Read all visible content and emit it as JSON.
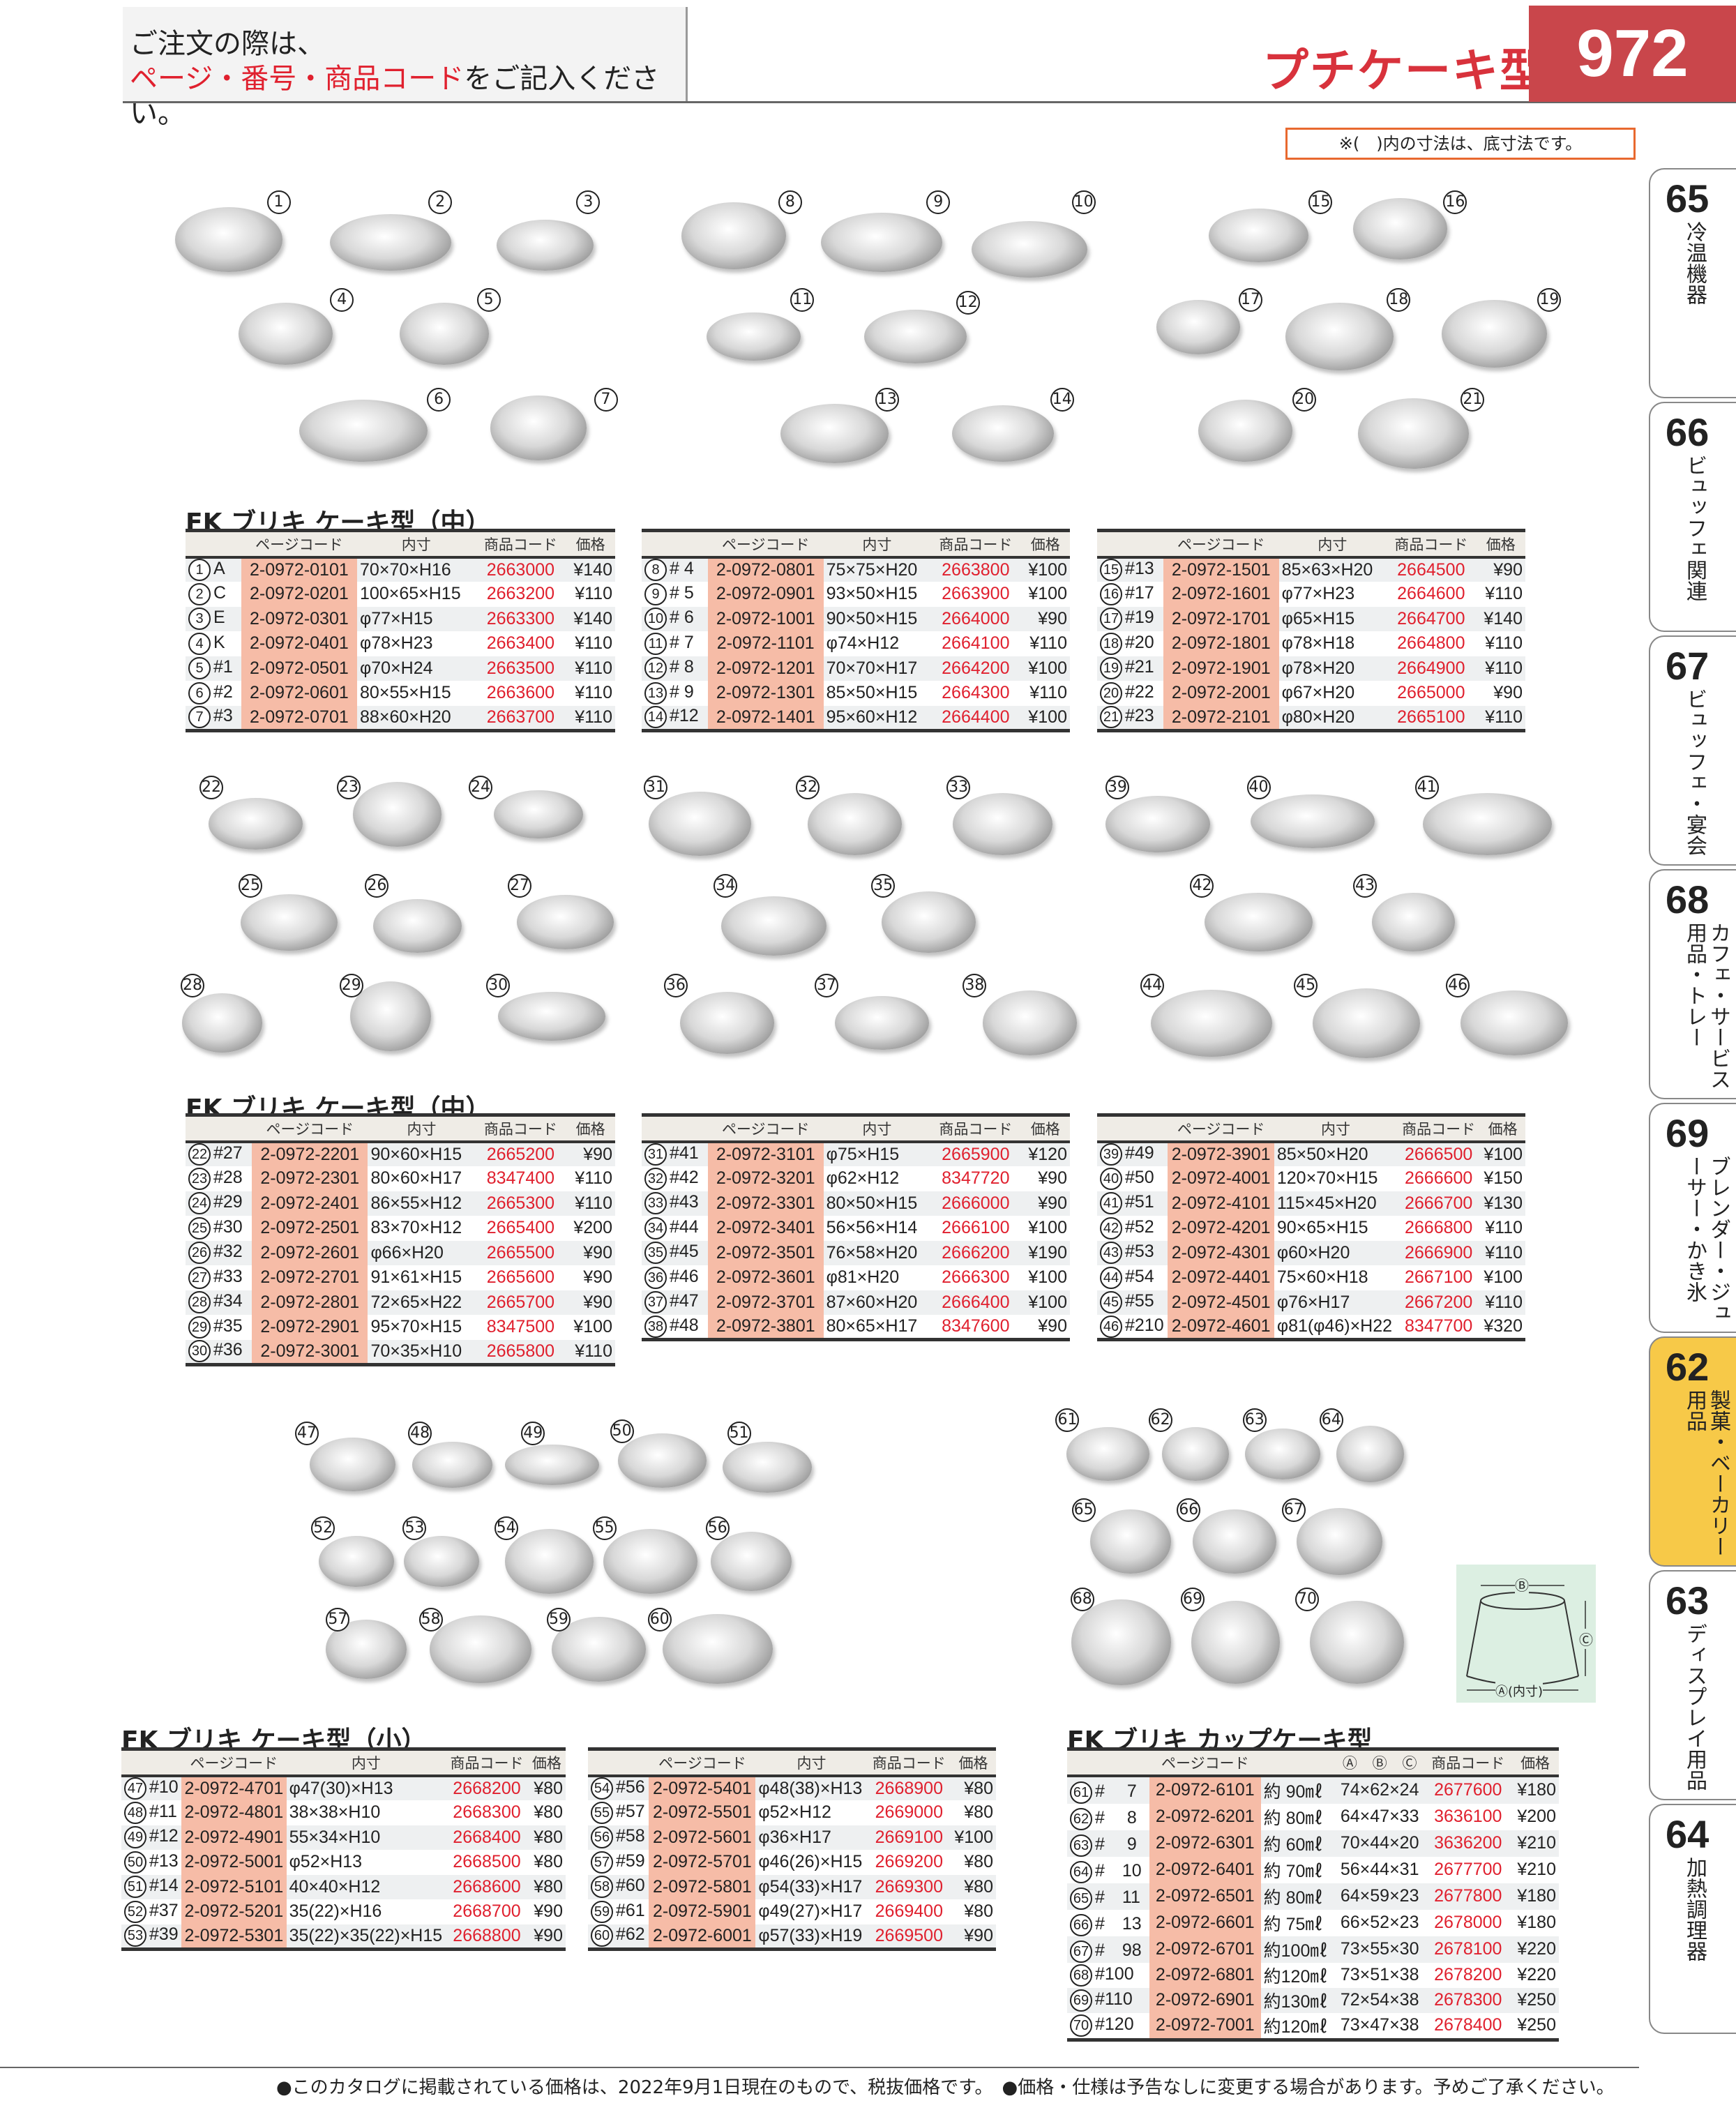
{
  "header": {
    "line1": "ご注文の際は、",
    "line2_red": "ページ・番号・商品コード",
    "line2_rest": "をご記入ください。",
    "title": "プチケーキ型",
    "page": "972"
  },
  "note": "※(　)内の寸法は、底寸法です。",
  "sidebar": [
    {
      "num": "65",
      "label": "冷温機器"
    },
    {
      "num": "66",
      "label": "ビュッフェ関連"
    },
    {
      "num": "67",
      "label": "ビュッフェ・宴会"
    },
    {
      "num": "68",
      "label": "カフェ・サービス用品・トレー"
    },
    {
      "num": "69",
      "label": "ブレンダー・ジューサー・かき氷"
    },
    {
      "num": "62",
      "label": "製菓・ベーカリー用品",
      "active": true
    },
    {
      "num": "63",
      "label": "ディスプレイ用品"
    },
    {
      "num": "64",
      "label": "加熱調理器"
    }
  ],
  "colors": {
    "accent_red": "#e0202e",
    "page_box": "#c9464b",
    "page_code_bg": "#f6bca7",
    "active_tab": "#f7c948",
    "note_border": "#e8692f"
  },
  "headers": {
    "page_code": "ページコード",
    "size": "内寸",
    "code": "商品コード",
    "price": "価格",
    "a": "Ⓐ",
    "b": "Ⓑ",
    "c": "Ⓒ"
  },
  "sections": [
    {
      "title": "FK ブリキ ケーキ型（中）",
      "tables": [
        [
          [
            "1",
            "A",
            "2-0972-0101",
            "70×70×H16",
            "2663000",
            "¥140"
          ],
          [
            "2",
            "C",
            "2-0972-0201",
            "100×65×H15",
            "2663200",
            "¥110"
          ],
          [
            "3",
            "E",
            "2-0972-0301",
            "φ77×H15",
            "2663300",
            "¥140"
          ],
          [
            "4",
            "K",
            "2-0972-0401",
            "φ78×H23",
            "2663400",
            "¥110"
          ],
          [
            "5",
            "#1",
            "2-0972-0501",
            "φ70×H24",
            "2663500",
            "¥110"
          ],
          [
            "6",
            "#2",
            "2-0972-0601",
            "80×55×H15",
            "2663600",
            "¥110"
          ],
          [
            "7",
            "#3",
            "2-0972-0701",
            "88×60×H20",
            "2663700",
            "¥110"
          ]
        ],
        [
          [
            "8",
            "# 4",
            "2-0972-0801",
            "75×75×H20",
            "2663800",
            "¥100"
          ],
          [
            "9",
            "# 5",
            "2-0972-0901",
            "93×50×H15",
            "2663900",
            "¥100"
          ],
          [
            "10",
            "# 6",
            "2-0972-1001",
            "90×50×H15",
            "2664000",
            "¥90"
          ],
          [
            "11",
            "# 7",
            "2-0972-1101",
            "φ74×H12",
            "2664100",
            "¥110"
          ],
          [
            "12",
            "# 8",
            "2-0972-1201",
            "70×70×H17",
            "2664200",
            "¥100"
          ],
          [
            "13",
            "# 9",
            "2-0972-1301",
            "85×50×H15",
            "2664300",
            "¥110"
          ],
          [
            "14",
            "#12",
            "2-0972-1401",
            "95×60×H12",
            "2664400",
            "¥100"
          ]
        ],
        [
          [
            "15",
            "#13",
            "2-0972-1501",
            "85×63×H20",
            "2664500",
            "¥90"
          ],
          [
            "16",
            "#17",
            "2-0972-1601",
            "φ77×H23",
            "2664600",
            "¥110"
          ],
          [
            "17",
            "#19",
            "2-0972-1701",
            "φ65×H15",
            "2664700",
            "¥140"
          ],
          [
            "18",
            "#20",
            "2-0972-1801",
            "φ78×H18",
            "2664800",
            "¥110"
          ],
          [
            "19",
            "#21",
            "2-0972-1901",
            "φ78×H20",
            "2664900",
            "¥110"
          ],
          [
            "20",
            "#22",
            "2-0972-2001",
            "φ67×H20",
            "2665000",
            "¥90"
          ],
          [
            "21",
            "#23",
            "2-0972-2101",
            "φ80×H20",
            "2665100",
            "¥110"
          ]
        ]
      ]
    },
    {
      "title": "FK ブリキ ケーキ型（中）",
      "tables": [
        [
          [
            "22",
            "#27",
            "2-0972-2201",
            "90×60×H15",
            "2665200",
            "¥90"
          ],
          [
            "23",
            "#28",
            "2-0972-2301",
            "80×60×H17",
            "8347400",
            "¥110"
          ],
          [
            "24",
            "#29",
            "2-0972-2401",
            "86×55×H12",
            "2665300",
            "¥110"
          ],
          [
            "25",
            "#30",
            "2-0972-2501",
            "83×70×H12",
            "2665400",
            "¥200"
          ],
          [
            "26",
            "#32",
            "2-0972-2601",
            "φ66×H20",
            "2665500",
            "¥90"
          ],
          [
            "27",
            "#33",
            "2-0972-2701",
            "91×61×H15",
            "2665600",
            "¥90"
          ],
          [
            "28",
            "#34",
            "2-0972-2801",
            "72×65×H22",
            "2665700",
            "¥90"
          ],
          [
            "29",
            "#35",
            "2-0972-2901",
            "95×70×H15",
            "8347500",
            "¥100"
          ],
          [
            "30",
            "#36",
            "2-0972-3001",
            "70×35×H10",
            "2665800",
            "¥110"
          ]
        ],
        [
          [
            "31",
            "#41",
            "2-0972-3101",
            "φ75×H15",
            "2665900",
            "¥120"
          ],
          [
            "32",
            "#42",
            "2-0972-3201",
            "φ62×H12",
            "8347720",
            "¥90"
          ],
          [
            "33",
            "#43",
            "2-0972-3301",
            "80×50×H15",
            "2666000",
            "¥90"
          ],
          [
            "34",
            "#44",
            "2-0972-3401",
            "56×56×H14",
            "2666100",
            "¥100"
          ],
          [
            "35",
            "#45",
            "2-0972-3501",
            "76×58×H20",
            "2666200",
            "¥190"
          ],
          [
            "36",
            "#46",
            "2-0972-3601",
            "φ81×H20",
            "2666300",
            "¥100"
          ],
          [
            "37",
            "#47",
            "2-0972-3701",
            "87×60×H20",
            "2666400",
            "¥100"
          ],
          [
            "38",
            "#48",
            "2-0972-3801",
            "80×65×H17",
            "8347600",
            "¥90"
          ]
        ],
        [
          [
            "39",
            "#49",
            "2-0972-3901",
            "85×50×H20",
            "2666500",
            "¥100"
          ],
          [
            "40",
            "#50",
            "2-0972-4001",
            "120×70×H15",
            "2666600",
            "¥150"
          ],
          [
            "41",
            "#51",
            "2-0972-4101",
            "115×45×H20",
            "2666700",
            "¥130"
          ],
          [
            "42",
            "#52",
            "2-0972-4201",
            "90×65×H15",
            "2666800",
            "¥110"
          ],
          [
            "43",
            "#53",
            "2-0972-4301",
            "φ60×H20",
            "2666900",
            "¥110"
          ],
          [
            "44",
            "#54",
            "2-0972-4401",
            "75×60×H18",
            "2667100",
            "¥100"
          ],
          [
            "45",
            "#55",
            "2-0972-4501",
            "φ76×H17",
            "2667200",
            "¥110"
          ],
          [
            "46",
            "#210",
            "2-0972-4601",
            "φ81(φ46)×H22",
            "8347700",
            "¥320"
          ]
        ]
      ]
    },
    {
      "title": "FK ブリキ ケーキ型（小）",
      "tables": [
        [
          [
            "47",
            "#10",
            "2-0972-4701",
            "φ47(30)×H13",
            "2668200",
            "¥80"
          ],
          [
            "48",
            "#11",
            "2-0972-4801",
            "38×38×H10",
            "2668300",
            "¥80"
          ],
          [
            "49",
            "#12",
            "2-0972-4901",
            "55×34×H10",
            "2668400",
            "¥80"
          ],
          [
            "50",
            "#13",
            "2-0972-5001",
            "φ52×H13",
            "2668500",
            "¥80"
          ],
          [
            "51",
            "#14",
            "2-0972-5101",
            "40×40×H12",
            "2668600",
            "¥80"
          ],
          [
            "52",
            "#37",
            "2-0972-5201",
            "35(22)×H16",
            "2668700",
            "¥90"
          ],
          [
            "53",
            "#39",
            "2-0972-5301",
            "35(22)×35(22)×H15",
            "2668800",
            "¥90"
          ]
        ],
        [
          [
            "54",
            "#56",
            "2-0972-5401",
            "φ48(38)×H13",
            "2668900",
            "¥80"
          ],
          [
            "55",
            "#57",
            "2-0972-5501",
            "φ52×H12",
            "2669000",
            "¥80"
          ],
          [
            "56",
            "#58",
            "2-0972-5601",
            "φ36×H17",
            "2669100",
            "¥100"
          ],
          [
            "57",
            "#59",
            "2-0972-5701",
            "φ46(26)×H15",
            "2669200",
            "¥80"
          ],
          [
            "58",
            "#60",
            "2-0972-5801",
            "φ54(33)×H17",
            "2669300",
            "¥80"
          ],
          [
            "59",
            "#61",
            "2-0972-5901",
            "φ49(27)×H17",
            "2669400",
            "¥80"
          ],
          [
            "60",
            "#62",
            "2-0972-6001",
            "φ57(33)×H19",
            "2669500",
            "¥90"
          ]
        ]
      ]
    },
    {
      "title": "FK ブリキ カップケーキ型",
      "tables": [
        [
          [
            "61",
            "#　 7",
            "2-0972-6101",
            "約 90㎖",
            "74×62×24",
            "2677600",
            "¥180"
          ],
          [
            "62",
            "#　 8",
            "2-0972-6201",
            "約 80㎖",
            "64×47×33",
            "3636100",
            "¥200"
          ],
          [
            "63",
            "#　 9",
            "2-0972-6301",
            "約 60㎖",
            "70×44×20",
            "3636200",
            "¥210"
          ],
          [
            "64",
            "#　10",
            "2-0972-6401",
            "約 70㎖",
            "56×44×31",
            "2677700",
            "¥210"
          ],
          [
            "65",
            "#　11",
            "2-0972-6501",
            "約 80㎖",
            "64×59×23",
            "2677800",
            "¥180"
          ],
          [
            "66",
            "#　13",
            "2-0972-6601",
            "約 75㎖",
            "66×52×23",
            "2678000",
            "¥180"
          ],
          [
            "67",
            "#　98",
            "2-0972-6701",
            "約100㎖",
            "73×55×30",
            "2678100",
            "¥220"
          ],
          [
            "68",
            "#100",
            "2-0972-6801",
            "約120㎖",
            "73×51×38",
            "2678200",
            "¥220"
          ],
          [
            "69",
            "#110",
            "2-0972-6901",
            "約130㎖",
            "72×54×38",
            "2678300",
            "¥250"
          ],
          [
            "70",
            "#120",
            "2-0972-7001",
            "約120㎖",
            "73×47×38",
            "2678400",
            "¥250"
          ]
        ]
      ]
    }
  ],
  "diagram": {
    "b": "Ⓑ",
    "c": "Ⓒ",
    "a": "Ⓐ(内寸)"
  },
  "footer": "●このカタログに掲載されている価格は、2022年9月1日現在のもので、税抜価格です。　●価格・仕様は予告なしに変更する場合があります。予めご了承ください。"
}
